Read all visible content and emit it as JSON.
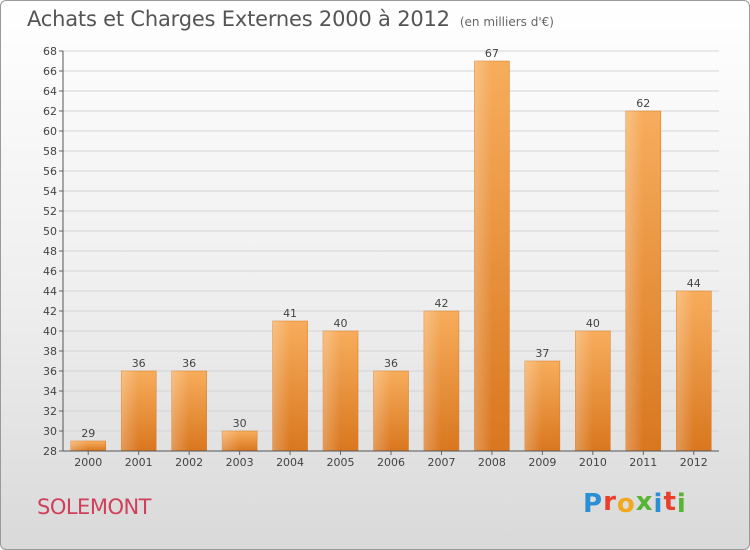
{
  "header": {
    "title": "Achats et Charges Externes 2000 à 2012",
    "subtitle": "(en milliers d'€)"
  },
  "footer": {
    "town": "SOLEMONT",
    "logo_letters": [
      "P",
      "r",
      "o",
      "x",
      "i",
      "t",
      "i"
    ],
    "logo_colors": [
      "#2b8fd6",
      "#e8402d",
      "#f2a81d",
      "#58b434",
      "#2b8fd6",
      "#e8402d",
      "#58b434"
    ]
  },
  "chart_data": {
    "type": "bar",
    "title": "Achats et Charges Externes 2000 à 2012",
    "subtitle": "(en milliers d'€)",
    "categories": [
      "2000",
      "2001",
      "2002",
      "2003",
      "2004",
      "2005",
      "2006",
      "2007",
      "2008",
      "2009",
      "2010",
      "2011",
      "2012"
    ],
    "values": [
      29,
      36,
      36,
      30,
      41,
      40,
      36,
      42,
      67,
      37,
      40,
      62,
      44
    ],
    "ylim": [
      28,
      68
    ],
    "ytick_step": 2,
    "grid": true,
    "bar_color": "#f0963a",
    "bar_color_light": "#f7ad5c",
    "bar_color_dark": "#d9771f"
  }
}
